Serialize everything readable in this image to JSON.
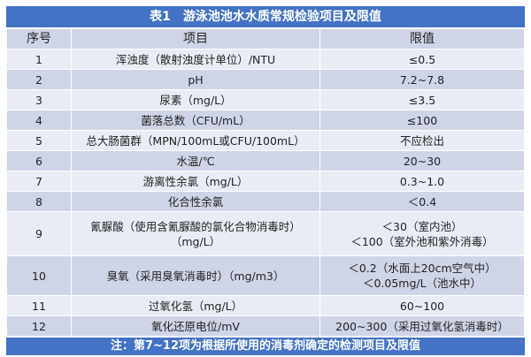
{
  "title": "表1　游泳池池水水质常规检验项目及限值",
  "headers": [
    "序号",
    "项目",
    "限值"
  ],
  "rows": [
    {
      "no": "1",
      "item": "浑浊度（散射浊度计单位）/NTU",
      "limit": "≤0.5"
    },
    {
      "no": "2",
      "item": "pH",
      "limit": "7.2~7.8"
    },
    {
      "no": "3",
      "item": "尿素（mg/L）",
      "limit": "≤3.5"
    },
    {
      "no": "4",
      "item": "菌落总数（CFU/mL）",
      "limit": "≤100"
    },
    {
      "no": "5",
      "item": "总大肠菌群（MPN/100mL或CFU/100mL）",
      "limit": "不应检出"
    },
    {
      "no": "6",
      "item": "水温/℃",
      "limit": "20~30"
    },
    {
      "no": "7",
      "item": "游离性余氯（mg/L）",
      "limit": "0.3~1.0"
    },
    {
      "no": "8",
      "item": "化合性余氯",
      "limit": "＜0.4"
    },
    {
      "no": "9",
      "item": "氰脲酸（使用含氰脲酸的氯化合物消毒时）",
      "item2": "（mg/L）",
      "limit": "＜30（室内池）",
      "limit2": "＜100（室外池和紫外消毒）"
    },
    {
      "no": "10",
      "item": "臭氧（采用臭氧消毒时）（mg/m3）",
      "limit": "＜0.2（水面上20cm空气中）",
      "limit2": "＜0.05mg/L（池水中）"
    },
    {
      "no": "11",
      "item": "过氧化氢（mg/L）",
      "limit": "60~100"
    },
    {
      "no": "12",
      "item": "氧化还原电位/mV",
      "limit": "200~300（采用过氧化氢消毒时）"
    }
  ],
  "note": "注：第7~12项为根据所使用的消毒剂确定的检测项目及限值",
  "colors": {
    "title_bg": "#4472c4",
    "row_light": "#e9ecf5",
    "row_dark": "#cfd5e7"
  }
}
